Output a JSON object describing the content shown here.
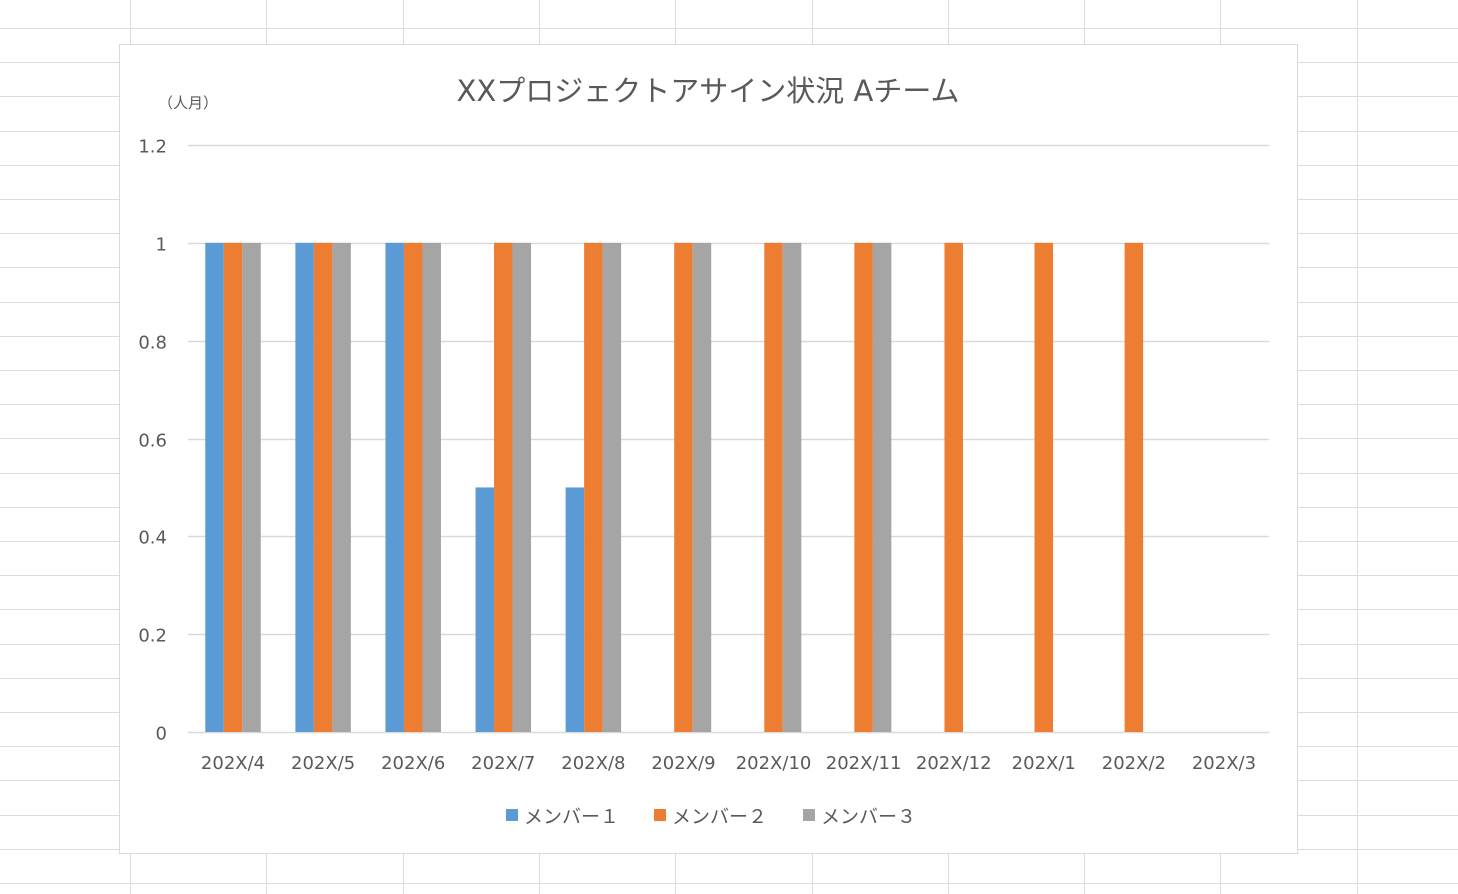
{
  "chart_data": {
    "type": "bar",
    "title": "XXプロジェクトアサイン状況 Aチーム",
    "ylabel": "（人月）",
    "xlabel": "",
    "categories": [
      "202X/4",
      "202X/5",
      "202X/6",
      "202X/7",
      "202X/8",
      "202X/9",
      "202X/10",
      "202X/11",
      "202X/12",
      "202X/1",
      "202X/2",
      "202X/3"
    ],
    "ylim": [
      0,
      1.2
    ],
    "yticks": [
      "0",
      "0.2",
      "0.4",
      "0.6",
      "0.8",
      "1",
      "1.2"
    ],
    "ytick_values": [
      0,
      0.2,
      0.4,
      0.6,
      0.8,
      1.0,
      1.2
    ],
    "grid": true,
    "legend_position": "bottom",
    "series": [
      {
        "name": "メンバー１",
        "color": "#5B9BD5",
        "values": [
          1,
          1,
          1,
          0.5,
          0.5,
          0,
          0,
          0,
          0,
          0,
          0,
          0
        ]
      },
      {
        "name": "メンバー２",
        "color": "#ED7D31",
        "values": [
          1,
          1,
          1,
          1,
          1,
          1,
          1,
          1,
          1,
          1,
          1,
          0
        ]
      },
      {
        "name": "メンバー３",
        "color": "#A5A5A5",
        "values": [
          1,
          1,
          1,
          1,
          1,
          1,
          1,
          1,
          0,
          0,
          0,
          0
        ]
      }
    ]
  }
}
